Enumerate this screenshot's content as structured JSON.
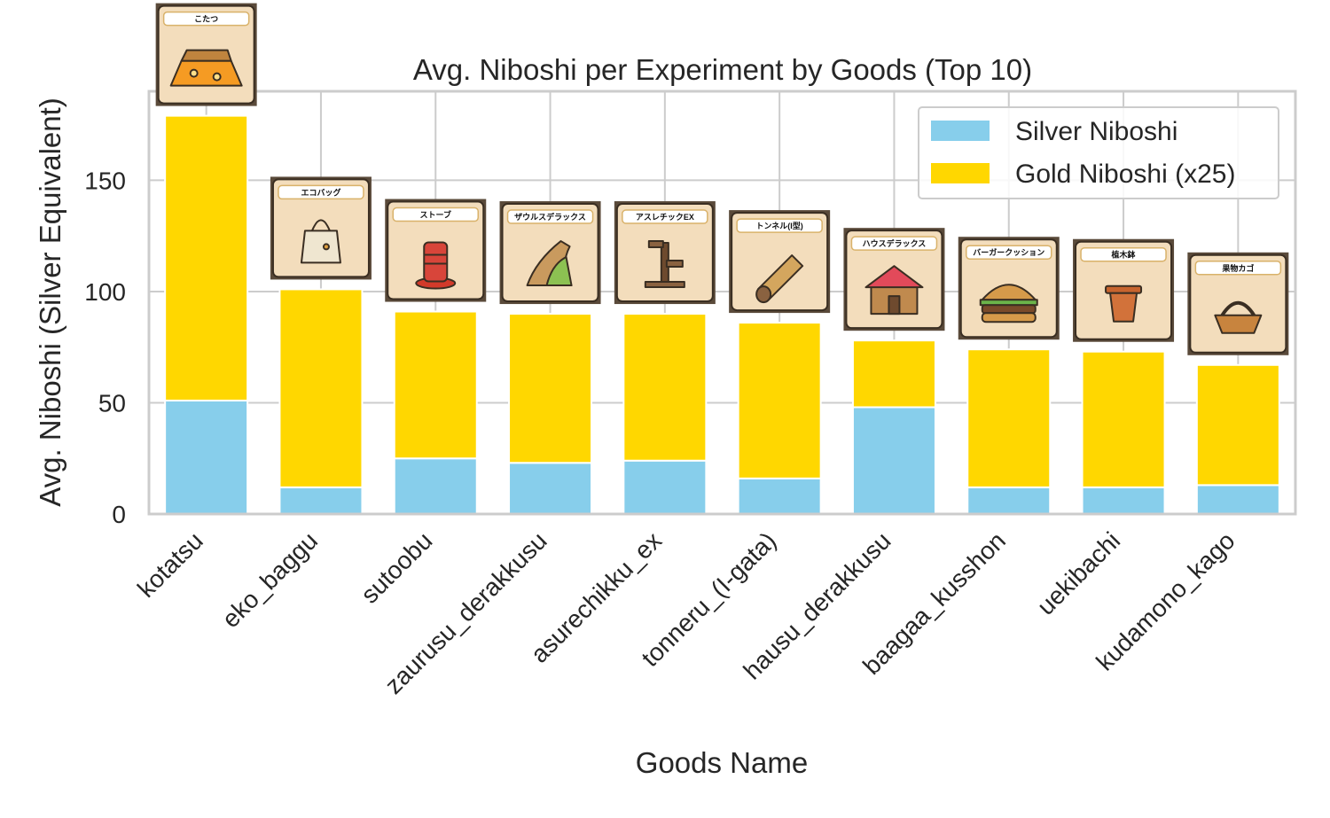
{
  "chart_data": {
    "type": "bar",
    "stacked": true,
    "title": "Avg. Niboshi per Experiment by Goods (Top 10)",
    "xlabel": "Goods Name",
    "ylabel": "Avg. Niboshi (Silver Equivalent)",
    "ylim": [
      0,
      190
    ],
    "yticks": [
      0,
      50,
      100,
      150
    ],
    "grid": true,
    "legend_position": "top-right",
    "categories": [
      "kotatsu",
      "eko_baggu",
      "sutoobu",
      "zaurusu_derakkusu",
      "asurechikku_ex",
      "tonneru_(I-gata)",
      "hausu_derakkusu",
      "baagaa_kusshon",
      "uekibachi",
      "kudamono_kago"
    ],
    "series": [
      {
        "name": "Silver Niboshi",
        "color": "#87CEEB",
        "values": [
          51,
          12,
          25,
          23,
          24,
          16,
          48,
          12,
          12,
          13
        ]
      },
      {
        "name": "Gold Niboshi (x25)",
        "color": "#FFD700",
        "values": [
          128,
          89,
          66,
          67,
          66,
          70,
          30,
          62,
          61,
          54
        ]
      }
    ],
    "item_cards": [
      {
        "label": "こたつ",
        "icon": "kotatsu-icon"
      },
      {
        "label": "エコバッグ",
        "icon": "eco-bag-icon"
      },
      {
        "label": "ストーブ",
        "icon": "stove-icon"
      },
      {
        "label": "ザウルスデラックス",
        "icon": "saurus-deluxe-icon"
      },
      {
        "label": "アスレチックEX",
        "icon": "athletic-ex-icon"
      },
      {
        "label": "トンネル(I型)",
        "icon": "tunnel-icon"
      },
      {
        "label": "ハウスデラックス",
        "icon": "house-deluxe-icon"
      },
      {
        "label": "バーガークッション",
        "icon": "burger-cushion-icon"
      },
      {
        "label": "植木鉢",
        "icon": "flower-pot-icon"
      },
      {
        "label": "果物カゴ",
        "icon": "fruit-basket-icon"
      }
    ]
  }
}
